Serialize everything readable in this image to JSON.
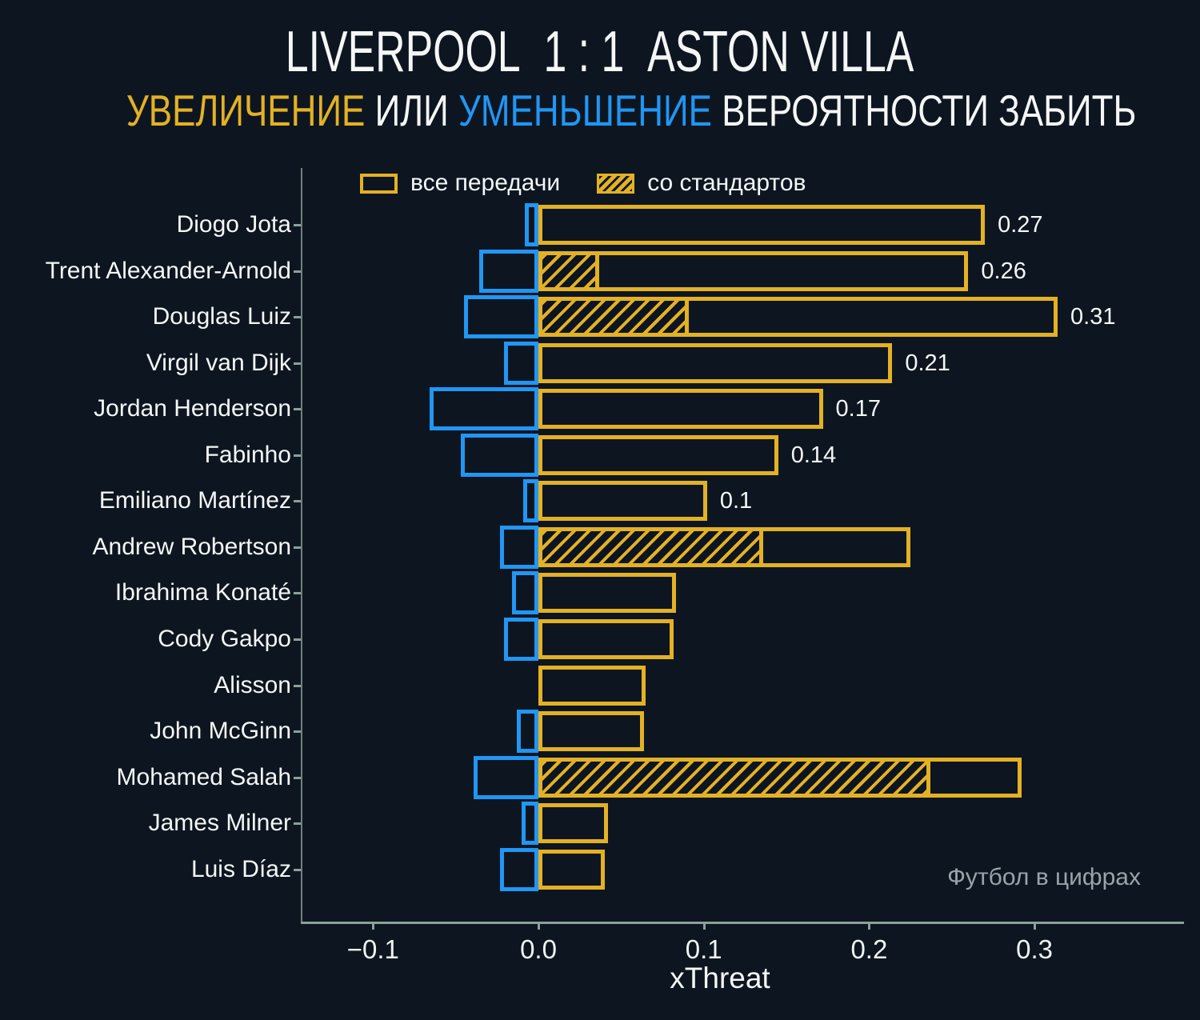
{
  "header": {
    "home": "LIVERPOOL",
    "score": "1 : 1",
    "away": "ASTON VILLA",
    "sub_increase": "УВЕЛИЧЕНИЕ",
    "sub_or": " ИЛИ ",
    "sub_decrease": "УМЕНЬШЕНИЕ",
    "sub_rest": " ВЕРОЯТНОСТИ ЗАБИТЬ"
  },
  "legend": {
    "all_passes": "все передачи",
    "set_pieces": "со стандартов"
  },
  "watermark": "Футбол в цифрах",
  "colors": {
    "background": "#0d1620",
    "positive_yellow": "#e4b125",
    "negative_blue": "#2196f3",
    "axis_gray": "#8ba09b",
    "text_white": "#f5f7f7",
    "watermark_gray": "#9aa3a9"
  },
  "chart_data": {
    "type": "bar",
    "orientation": "horizontal",
    "title": "LIVERPOOL 1 : 1 ASTON VILLA",
    "subtitle": "УВЕЛИЧЕНИЕ ИЛИ УМЕНЬШЕНИЕ ВЕРОЯТНОСТИ ЗАБИТЬ",
    "xlabel": "xThreat",
    "xlim": [
      -0.143,
      0.38
    ],
    "grid": false,
    "legend_position": "top-inside",
    "xticks": [
      -0.1,
      0.0,
      0.1,
      0.2,
      0.3
    ],
    "xtick_labels": [
      "−0.1",
      "0.0",
      "0.1",
      "0.2",
      "0.3"
    ],
    "series_note": "positive = все передачи (yellow outline), set_pieces = со стандартов (hatched), negative = уменьшение (blue outline)",
    "players": [
      {
        "name": "Diogo Jota",
        "negative": -0.008,
        "positive": 0.27,
        "set_pieces": 0,
        "label": "0.27"
      },
      {
        "name": "Trent Alexander-Arnold",
        "negative": -0.036,
        "positive": 0.26,
        "set_pieces": 0.037,
        "label": "0.26"
      },
      {
        "name": "Douglas Luiz",
        "negative": -0.045,
        "positive": 0.314,
        "set_pieces": 0.091,
        "label": "0.31"
      },
      {
        "name": "Virgil van Dijk",
        "negative": -0.021,
        "positive": 0.214,
        "set_pieces": 0,
        "label": "0.21"
      },
      {
        "name": "Jordan Henderson",
        "negative": -0.066,
        "positive": 0.172,
        "set_pieces": 0,
        "label": "0.17"
      },
      {
        "name": "Fabinho",
        "negative": -0.047,
        "positive": 0.145,
        "set_pieces": 0,
        "label": "0.14"
      },
      {
        "name": "Emiliano Martínez",
        "negative": -0.009,
        "positive": 0.102,
        "set_pieces": 0,
        "label": "0.1"
      },
      {
        "name": "Andrew Robertson",
        "negative": -0.023,
        "positive": 0.225,
        "set_pieces": 0.136,
        "label": null
      },
      {
        "name": "Ibrahima Konaté",
        "negative": -0.016,
        "positive": 0.083,
        "set_pieces": 0,
        "label": null
      },
      {
        "name": "Cody Gakpo",
        "negative": -0.021,
        "positive": 0.082,
        "set_pieces": 0,
        "label": null
      },
      {
        "name": "Alisson",
        "negative": 0,
        "positive": 0.065,
        "set_pieces": 0,
        "label": null
      },
      {
        "name": "John McGinn",
        "negative": -0.013,
        "positive": 0.064,
        "set_pieces": 0,
        "label": null
      },
      {
        "name": "Mohamed Salah",
        "negative": -0.039,
        "positive": 0.292,
        "set_pieces": 0.237,
        "label": null
      },
      {
        "name": "James Milner",
        "negative": -0.01,
        "positive": 0.042,
        "set_pieces": 0,
        "label": null
      },
      {
        "name": "Luis Díaz",
        "negative": -0.023,
        "positive": 0.04,
        "set_pieces": 0,
        "label": null
      }
    ]
  }
}
